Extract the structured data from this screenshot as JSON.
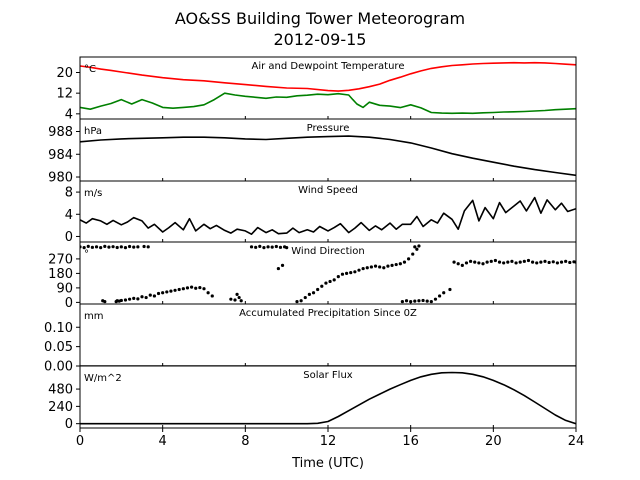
{
  "figure": {
    "title_line1": "AO&SS Building Tower Meteorogram",
    "title_line2": "2012-09-15",
    "xlabel": "Time (UTC)",
    "x_ticks": [
      "0",
      "4",
      "8",
      "12",
      "16",
      "20",
      "24"
    ],
    "xlim": [
      0,
      24
    ]
  },
  "chart_data": [
    {
      "type": "line",
      "title": "Air and Dewpoint Temperature",
      "unit": "°C",
      "ylim": [
        2,
        26
      ],
      "y_ticks": [
        4,
        12,
        20
      ],
      "tick_labels": [
        "4",
        "12",
        "20"
      ],
      "series": [
        {
          "color": "#ff0000",
          "x": [
            0,
            0.5,
            1,
            1.5,
            2,
            3,
            4,
            5,
            6,
            7,
            8,
            9,
            10,
            11,
            12,
            12.5,
            13,
            13.5,
            14,
            14.5,
            15,
            15.5,
            16,
            16.5,
            17,
            17.5,
            18,
            18.5,
            19,
            19.5,
            20,
            20.5,
            21,
            21.5,
            22,
            22.5,
            23,
            23.5,
            24
          ],
          "y": [
            22.5,
            22,
            21.3,
            20.8,
            20.2,
            19,
            18,
            17.2,
            16.8,
            16,
            15.3,
            14.6,
            14,
            13.8,
            13,
            12.8,
            13.1,
            13.7,
            14.5,
            15.5,
            17,
            18.2,
            19.5,
            20.6,
            21.6,
            22.2,
            22.7,
            23,
            23.3,
            23.5,
            23.6,
            23.7,
            23.8,
            23.7,
            23.8,
            23.7,
            23.5,
            23.2,
            23
          ]
        },
        {
          "color": "#008000",
          "x": [
            0,
            0.5,
            1,
            1.5,
            2,
            2.5,
            3,
            3.5,
            4,
            4.5,
            5,
            5.5,
            6,
            6.5,
            7,
            7.5,
            8,
            8.5,
            9,
            9.5,
            10,
            10.5,
            11,
            11.5,
            12,
            12.5,
            13,
            13.2,
            13.4,
            13.7,
            14,
            14.5,
            15,
            15.5,
            16,
            16.5,
            17,
            17.5,
            18,
            18.5,
            19,
            19.5,
            20,
            20.5,
            21,
            21.5,
            22,
            22.5,
            23,
            23.5,
            24
          ],
          "y": [
            6.5,
            5.8,
            7,
            8,
            9.5,
            7.8,
            9.5,
            8.2,
            6.5,
            6.2,
            6.5,
            6.8,
            7.5,
            9.5,
            12,
            11.3,
            10.8,
            10.4,
            10,
            10.5,
            10.4,
            11,
            11.2,
            11.6,
            11.4,
            11.8,
            11.3,
            9.5,
            7.8,
            6.5,
            8.5,
            7.3,
            7,
            6.4,
            7.5,
            6.3,
            4.5,
            4.3,
            4.2,
            4.3,
            4.2,
            4.4,
            4.5,
            4.7,
            4.8,
            4.9,
            5.1,
            5.3,
            5.6,
            5.8,
            6
          ]
        }
      ]
    },
    {
      "type": "line",
      "title": "Pressure",
      "unit": "hPa",
      "ylim": [
        979.3,
        990.2
      ],
      "y_ticks": [
        980,
        984,
        988
      ],
      "tick_labels": [
        "980",
        "984",
        "988"
      ],
      "series": [
        {
          "color": "#000000",
          "x": [
            0,
            1,
            2,
            3,
            4,
            5,
            6,
            7,
            8,
            9,
            10,
            11,
            12,
            13,
            14,
            15,
            16,
            17,
            18,
            19,
            20,
            21,
            22,
            23,
            24
          ],
          "y": [
            986.2,
            986.5,
            986.7,
            986.8,
            986.9,
            987,
            987,
            986.9,
            986.7,
            986.6,
            986.8,
            987,
            987.1,
            987.2,
            987,
            986.6,
            986,
            985.1,
            984.1,
            983.3,
            982.6,
            981.9,
            981.3,
            980.8,
            980.3
          ]
        }
      ]
    },
    {
      "type": "line",
      "title": "Wind Speed",
      "unit": "m/s",
      "ylim": [
        -1,
        10
      ],
      "y_ticks": [
        0,
        4,
        8
      ],
      "tick_labels": [
        "0",
        "4",
        "8"
      ],
      "series": [
        {
          "color": "#000000",
          "x": [
            0,
            0.3,
            0.6,
            1,
            1.3,
            1.6,
            2,
            2.3,
            2.6,
            3,
            3.3,
            3.6,
            4,
            4.3,
            4.6,
            5,
            5.3,
            5.6,
            6,
            6.3,
            6.6,
            7,
            7.3,
            7.6,
            8,
            8.3,
            8.6,
            9,
            9.3,
            9.6,
            10,
            10.3,
            10.6,
            11,
            11.3,
            11.6,
            12,
            12.3,
            12.6,
            13,
            13.3,
            13.6,
            14,
            14.3,
            14.6,
            15,
            15.3,
            15.6,
            16,
            16.3,
            16.6,
            17,
            17.3,
            17.6,
            18,
            18.3,
            18.6,
            19,
            19.3,
            19.6,
            20,
            20.3,
            20.6,
            21,
            21.3,
            21.6,
            22,
            22.3,
            22.6,
            23,
            23.3,
            23.6,
            24
          ],
          "y": [
            3,
            2.4,
            3.2,
            2.8,
            2.2,
            2.9,
            2.1,
            2.6,
            3.4,
            2.8,
            1.5,
            2.2,
            0.8,
            1.6,
            2.5,
            1.2,
            3.2,
            1,
            2.2,
            1.4,
            2,
            1.1,
            0.6,
            1.3,
            1,
            0.4,
            1.6,
            0.7,
            1.2,
            0.5,
            0.6,
            1.5,
            0.7,
            1.2,
            0.8,
            1.8,
            1,
            1.6,
            2.3,
            0.7,
            1.5,
            2.5,
            1.1,
            1.9,
            1.2,
            2.4,
            1.3,
            2.2,
            2.2,
            3.6,
            1.8,
            3,
            2.4,
            4.2,
            3.1,
            1.3,
            4.6,
            6.5,
            2.8,
            5.2,
            3.2,
            6.1,
            4.3,
            5.5,
            6.4,
            4.6,
            7,
            4.2,
            6.6,
            4.8,
            6,
            4.5,
            5
          ]
        }
      ]
    },
    {
      "type": "scatter",
      "title": "Wind Direction",
      "unit": "°",
      "ylim": [
        -10,
        375
      ],
      "y_ticks": [
        0,
        90,
        180,
        270
      ],
      "tick_labels": [
        "0",
        "90",
        "180",
        "270"
      ],
      "series": [
        {
          "color": "#000000",
          "x": [
            0,
            0.2,
            0.4,
            0.6,
            0.8,
            1,
            1.2,
            1.4,
            1.6,
            1.8,
            2,
            2.2,
            2.4,
            2.6,
            2.8,
            3.1,
            3.3,
            1.1,
            1.2,
            1.75,
            1.8,
            1.9,
            2,
            2.2,
            2.4,
            2.6,
            2.8,
            3,
            3.2,
            3.4,
            3.6,
            3.8,
            4,
            4.2,
            4.4,
            4.6,
            4.8,
            5,
            5.2,
            5.4,
            5.6,
            5.8,
            6,
            6.2,
            6.4,
            7.6,
            7.7,
            7.8,
            7.3,
            7.5,
            8.3,
            8.5,
            8.7,
            8.9,
            9.1,
            9.3,
            9.5,
            9.7,
            9.9,
            10,
            9.6,
            9.8,
            10.5,
            10.7,
            10.9,
            11.1,
            11.3,
            11.5,
            11.7,
            11.9,
            12.1,
            12.3,
            12.5,
            12.7,
            12.9,
            13.1,
            13.3,
            13.5,
            13.7,
            13.9,
            14.1,
            14.3,
            14.5,
            14.7,
            14.9,
            15.1,
            15.3,
            15.5,
            15.7,
            15.9,
            16.1,
            16.3,
            15.6,
            15.8,
            16,
            16.2,
            16.4,
            16.6,
            16.8,
            17,
            16.2,
            16.4,
            17.2,
            17.4,
            17.6,
            17.9,
            18.1,
            18.3,
            18.5,
            18.7,
            18.9,
            19.1,
            19.3,
            19.5,
            19.7,
            19.9,
            20.1,
            20.3,
            20.5,
            20.7,
            20.9,
            21.1,
            21.3,
            21.5,
            21.7,
            21.9,
            22.1,
            22.3,
            22.5,
            22.7,
            22.9,
            23.1,
            23.3,
            23.5,
            23.7,
            23.9,
            24
          ],
          "y": [
            345,
            340,
            348,
            342,
            345,
            340,
            348,
            343,
            346,
            341,
            345,
            340,
            347,
            343,
            345,
            347,
            345,
            10,
            5,
            5,
            10,
            8,
            12,
            15,
            20,
            25,
            22,
            35,
            30,
            45,
            40,
            55,
            60,
            65,
            70,
            75,
            80,
            85,
            90,
            95,
            88,
            92,
            85,
            60,
            40,
            50,
            30,
            10,
            20,
            15,
            345,
            342,
            348,
            340,
            345,
            343,
            347,
            342,
            345,
            340,
            210,
            230,
            5,
            10,
            30,
            50,
            60,
            80,
            100,
            120,
            130,
            140,
            160,
            175,
            180,
            185,
            190,
            200,
            210,
            215,
            220,
            225,
            220,
            215,
            225,
            230,
            235,
            240,
            250,
            270,
            300,
            330,
            5,
            10,
            5,
            8,
            10,
            12,
            8,
            5,
            345,
            350,
            20,
            40,
            60,
            80,
            250,
            240,
            230,
            245,
            255,
            250,
            245,
            240,
            250,
            255,
            260,
            250,
            245,
            250,
            255,
            245,
            250,
            255,
            260,
            250,
            245,
            250,
            255,
            248,
            252,
            245,
            250,
            255,
            248,
            252,
            250
          ]
        }
      ]
    },
    {
      "type": "line",
      "title": "Accumulated Precipitation Since 0Z",
      "unit": "mm",
      "ylim": [
        0,
        0.16
      ],
      "y_ticks": [
        0,
        0.05,
        0.1
      ],
      "tick_labels": [
        "0.00",
        "0.05",
        "0.10"
      ],
      "series": [
        {
          "color": "#000000",
          "x": [
            0,
            24
          ],
          "y": [
            0,
            0
          ]
        }
      ]
    },
    {
      "type": "line",
      "title": "Solar Flux",
      "unit": "W/m^2",
      "ylim": [
        -60,
        800
      ],
      "y_ticks": [
        0,
        240,
        480
      ],
      "tick_labels": [
        "0",
        "240",
        "480"
      ],
      "series": [
        {
          "color": "#000000",
          "x": [
            0,
            1,
            2,
            3,
            4,
            5,
            6,
            7,
            8,
            9,
            10,
            11,
            11.5,
            12,
            12.5,
            13,
            13.5,
            14,
            14.5,
            15,
            15.5,
            16,
            16.5,
            17,
            17.5,
            18,
            18.5,
            19,
            19.5,
            20,
            20.5,
            21,
            21.5,
            22,
            22.5,
            23,
            23.5,
            24
          ],
          "y": [
            0,
            0,
            0,
            0,
            0,
            0,
            0,
            0,
            0,
            0,
            0,
            0,
            5,
            30,
            100,
            180,
            260,
            340,
            410,
            480,
            540,
            600,
            650,
            685,
            705,
            710,
            705,
            685,
            650,
            600,
            540,
            470,
            390,
            300,
            210,
            120,
            45,
            0
          ]
        }
      ]
    }
  ]
}
